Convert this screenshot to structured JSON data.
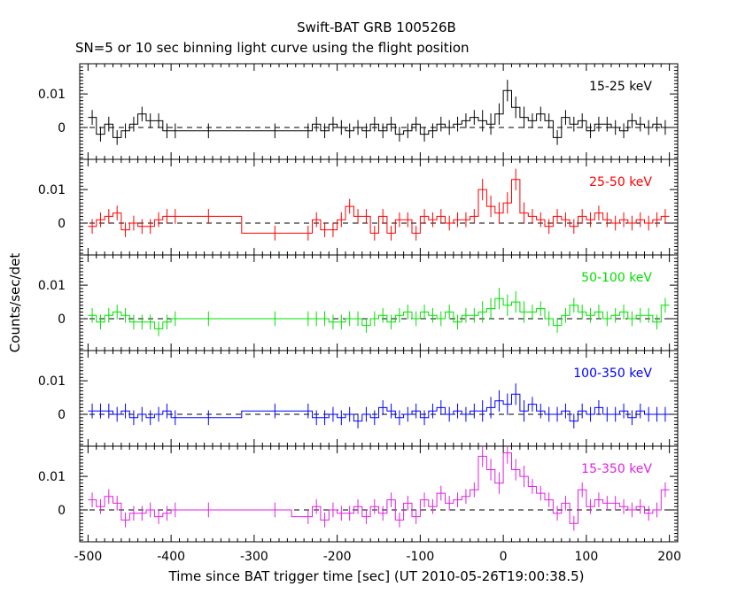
{
  "chart_data": {
    "type": "line",
    "title": "Swift-BAT GRB 100526B",
    "subtitle": "SN=5 or 10 sec binning light curve using the flight position",
    "xlabel": "Time since BAT trigger time [sec] (UT 2010-05-26T19:00:38.5)",
    "ylabel": "Counts/sec/det",
    "xlim": [
      -510,
      210
    ],
    "ylim": [
      -0.0095,
      0.019
    ],
    "x_ticks": [
      "-500",
      "-400",
      "-300",
      "-200",
      "-100",
      "0",
      "100",
      "200"
    ],
    "y_ticks": [
      "0",
      "0.01"
    ],
    "grid": false,
    "legend": "none",
    "reference_line": "dashed zero level",
    "series": [
      {
        "name": "15-25 keV",
        "color": "#000000",
        "x": [
          -495,
          -485,
          -475,
          -465,
          -455,
          -445,
          -435,
          -425,
          -415,
          -405,
          -395,
          -355,
          -275,
          -235,
          -225,
          -215,
          -205,
          -195,
          -185,
          -175,
          -165,
          -155,
          -145,
          -135,
          -125,
          -115,
          -105,
          -95,
          -85,
          -75,
          -65,
          -55,
          -45,
          -35,
          -25,
          -15,
          -5,
          5,
          15,
          25,
          35,
          45,
          55,
          65,
          75,
          85,
          95,
          105,
          115,
          125,
          135,
          145,
          155,
          165,
          175,
          185,
          195
        ],
        "y": [
          0.003,
          -0.002,
          0.001,
          -0.003,
          -0.001,
          0.001,
          0.004,
          0.002,
          0.002,
          -0.001,
          -0.001,
          -0.001,
          -0.001,
          -0.001,
          0.001,
          -0.001,
          0.001,
          0.0,
          -0.001,
          0.0,
          -0.001,
          0.001,
          -0.001,
          0.001,
          -0.002,
          -0.001,
          0.001,
          -0.002,
          -0.001,
          0.001,
          0.0,
          0.001,
          0.002,
          0.003,
          0.002,
          0.001,
          0.004,
          0.011,
          0.006,
          0.003,
          0.002,
          0.004,
          0.002,
          -0.003,
          0.003,
          0.001,
          0.002,
          -0.001,
          0.001,
          0.001,
          0.0,
          -0.001,
          0.002,
          0.001,
          0.0,
          0.001,
          0.0
        ]
      },
      {
        "name": "25-50 keV",
        "color": "#ff0000",
        "x": [
          -495,
          -485,
          -475,
          -465,
          -455,
          -445,
          -435,
          -425,
          -415,
          -405,
          -395,
          -355,
          -275,
          -235,
          -225,
          -215,
          -205,
          -195,
          -185,
          -175,
          -165,
          -155,
          -145,
          -135,
          -125,
          -115,
          -105,
          -95,
          -85,
          -75,
          -65,
          -55,
          -45,
          -35,
          -25,
          -15,
          -5,
          5,
          15,
          25,
          35,
          45,
          55,
          65,
          75,
          85,
          95,
          105,
          115,
          125,
          135,
          145,
          155,
          165,
          175,
          185,
          195
        ],
        "y": [
          -0.001,
          0.001,
          0.002,
          0.003,
          -0.002,
          0.0,
          -0.001,
          -0.001,
          0.001,
          0.002,
          0.002,
          0.002,
          -0.003,
          -0.003,
          0.001,
          -0.002,
          -0.002,
          0.001,
          0.005,
          0.002,
          0.002,
          -0.003,
          0.002,
          -0.003,
          0.001,
          0.001,
          -0.003,
          0.002,
          0.001,
          0.002,
          0.0,
          0.001,
          0.001,
          0.002,
          0.01,
          0.005,
          0.003,
          0.006,
          0.013,
          0.003,
          0.002,
          0.001,
          -0.001,
          0.002,
          0.001,
          -0.001,
          0.002,
          0.001,
          0.003,
          0.001,
          0.0,
          0.001,
          0.0,
          0.001,
          0.0,
          0.001,
          0.002
        ]
      },
      {
        "name": "50-100 keV",
        "color": "#00e000",
        "x": [
          -495,
          -485,
          -475,
          -465,
          -455,
          -445,
          -435,
          -425,
          -415,
          -405,
          -395,
          -355,
          -275,
          -235,
          -225,
          -215,
          -205,
          -195,
          -185,
          -175,
          -165,
          -155,
          -145,
          -135,
          -125,
          -115,
          -105,
          -95,
          -85,
          -75,
          -65,
          -55,
          -45,
          -35,
          -25,
          -15,
          -5,
          5,
          15,
          25,
          35,
          45,
          55,
          65,
          75,
          85,
          95,
          105,
          115,
          125,
          135,
          145,
          155,
          165,
          175,
          185,
          195
        ],
        "y": [
          0.001,
          -0.001,
          0.001,
          0.002,
          0.001,
          -0.001,
          -0.001,
          -0.001,
          -0.003,
          -0.001,
          0.0,
          0.0,
          0.0,
          0.0,
          0.0,
          0.0,
          -0.001,
          -0.001,
          0.0,
          0.0,
          -0.002,
          0.0,
          0.001,
          -0.001,
          0.001,
          0.002,
          0.0,
          0.002,
          0.001,
          0.0,
          0.002,
          -0.001,
          0.001,
          0.001,
          0.002,
          0.003,
          0.006,
          0.004,
          0.005,
          0.002,
          0.002,
          0.003,
          0.0,
          -0.002,
          0.001,
          0.004,
          0.002,
          0.001,
          0.002,
          0.0,
          0.001,
          0.002,
          0.0,
          0.001,
          0.001,
          -0.001,
          0.004
        ]
      },
      {
        "name": "100-350 keV",
        "color": "#0000ff",
        "x": [
          -495,
          -485,
          -475,
          -465,
          -455,
          -445,
          -435,
          -425,
          -415,
          -405,
          -395,
          -355,
          -275,
          -235,
          -225,
          -215,
          -205,
          -195,
          -185,
          -175,
          -165,
          -155,
          -145,
          -135,
          -125,
          -115,
          -105,
          -95,
          -85,
          -75,
          -65,
          -55,
          -45,
          -35,
          -25,
          -15,
          -5,
          5,
          15,
          25,
          35,
          45,
          55,
          65,
          75,
          85,
          95,
          105,
          115,
          125,
          135,
          145,
          155,
          165,
          175,
          185,
          195
        ],
        "y": [
          0.001,
          0.001,
          0.001,
          0.0,
          0.001,
          -0.001,
          0.0,
          -0.001,
          0.0,
          0.001,
          -0.001,
          -0.001,
          0.001,
          0.001,
          -0.001,
          -0.001,
          0.0,
          -0.001,
          0.0,
          -0.002,
          0.0,
          -0.001,
          0.002,
          0.001,
          -0.001,
          0.0,
          0.001,
          -0.001,
          0.001,
          0.002,
          0.0,
          0.001,
          0.0,
          0.001,
          0.001,
          0.002,
          0.004,
          0.003,
          0.006,
          0.001,
          0.003,
          0.001,
          0.0,
          0.0,
          0.001,
          -0.002,
          0.001,
          0.0,
          0.002,
          0.0,
          0.0,
          0.001,
          -0.001,
          0.001,
          0.0,
          0.0,
          0.0
        ]
      },
      {
        "name": "15-350 keV",
        "color": "#e020e0",
        "x": [
          -495,
          -485,
          -475,
          -465,
          -455,
          -445,
          -435,
          -425,
          -415,
          -405,
          -395,
          -355,
          -275,
          -235,
          -225,
          -215,
          -205,
          -195,
          -185,
          -175,
          -165,
          -155,
          -145,
          -135,
          -125,
          -115,
          -105,
          -95,
          -85,
          -75,
          -65,
          -55,
          -45,
          -35,
          -25,
          -15,
          -5,
          5,
          15,
          25,
          35,
          45,
          55,
          65,
          75,
          85,
          95,
          105,
          115,
          125,
          135,
          145,
          155,
          165,
          175,
          185,
          195
        ],
        "y": [
          0.003,
          0.001,
          0.004,
          0.002,
          -0.003,
          -0.001,
          -0.001,
          0.0,
          -0.002,
          -0.001,
          0.0,
          0.0,
          0.0,
          -0.002,
          0.001,
          -0.003,
          0.0,
          -0.001,
          -0.001,
          0.001,
          -0.002,
          0.001,
          -0.001,
          0.003,
          -0.003,
          0.002,
          -0.002,
          0.003,
          0.001,
          0.005,
          0.002,
          0.003,
          0.004,
          0.006,
          0.016,
          0.012,
          0.008,
          0.017,
          0.012,
          0.01,
          0.007,
          0.005,
          0.003,
          -0.001,
          0.002,
          -0.004,
          0.006,
          0.001,
          0.003,
          0.002,
          0.002,
          0.001,
          0.0,
          0.001,
          -0.001,
          0.0,
          0.006
        ]
      }
    ]
  }
}
